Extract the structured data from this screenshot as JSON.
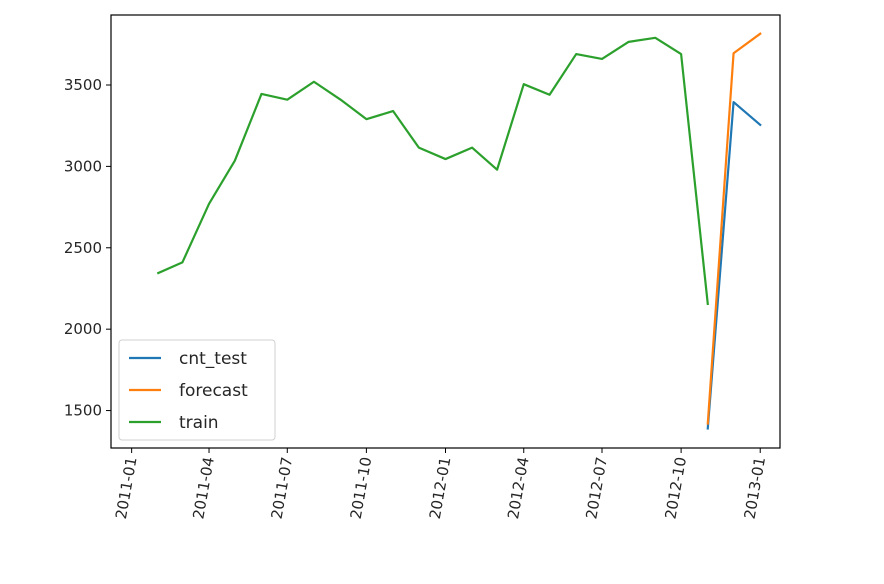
{
  "chart_data": {
    "type": "line",
    "title": "",
    "xlabel": "",
    "ylabel": "",
    "xlim": [
      "2010-12-08",
      "2013-01-24"
    ],
    "ylim": [
      1270,
      3930
    ],
    "grid": false,
    "legend_position": "lower-left",
    "x_ticks": [
      "2011-01",
      "2011-04",
      "2011-07",
      "2011-10",
      "2012-01",
      "2012-04",
      "2012-07",
      "2012-10",
      "2013-01"
    ],
    "y_ticks": [
      1500,
      2000,
      2500,
      3000,
      3500
    ],
    "series": [
      {
        "name": "cnt_test",
        "color": "#1f77b4",
        "x": [
          "2012-11-01",
          "2012-12-01",
          "2013-01-01"
        ],
        "y": [
          1390,
          3395,
          3255
        ]
      },
      {
        "name": "forecast",
        "color": "#ff7f0e",
        "x": [
          "2012-11-01",
          "2012-12-01",
          "2013-01-01"
        ],
        "y": [
          1420,
          3695,
          3815
        ]
      },
      {
        "name": "train",
        "color": "#2ca02c",
        "x": [
          "2011-02-01",
          "2011-03-01",
          "2011-04-01",
          "2011-05-01",
          "2011-06-01",
          "2011-07-01",
          "2011-08-01",
          "2011-09-01",
          "2011-10-01",
          "2011-11-01",
          "2011-12-01",
          "2012-01-01",
          "2012-02-01",
          "2012-03-01",
          "2012-04-01",
          "2012-05-01",
          "2012-06-01",
          "2012-07-01",
          "2012-08-01",
          "2012-09-01",
          "2012-10-01",
          "2012-11-01"
        ],
        "y": [
          2345,
          2410,
          2770,
          3035,
          3445,
          3410,
          3520,
          3410,
          3290,
          3340,
          3115,
          3045,
          3115,
          2980,
          3505,
          3440,
          3690,
          3660,
          3765,
          3790,
          3690,
          2155
        ]
      }
    ]
  }
}
